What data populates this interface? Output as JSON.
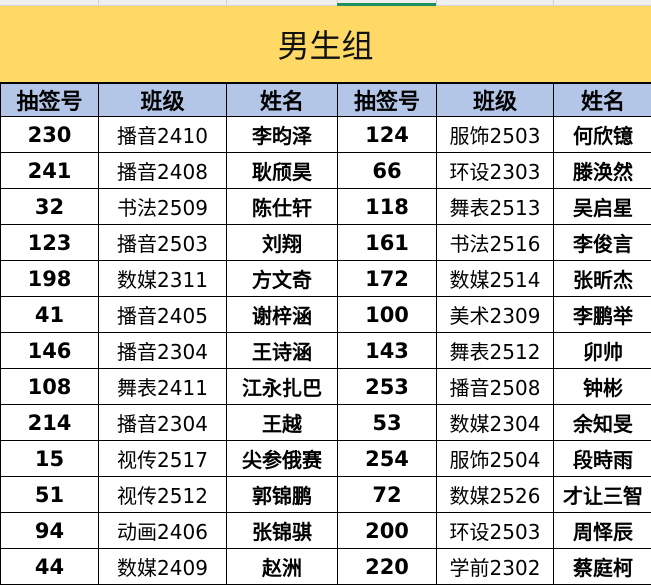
{
  "title": "男生组",
  "colors": {
    "title_bg": "#FFD965",
    "header_bg": "#B4C6E7",
    "selected_column_indicator": "#1e8f5e"
  },
  "headers": [
    "抽签号",
    "班级",
    "姓名",
    "抽签号",
    "班级",
    "姓名"
  ],
  "rows": [
    [
      "230",
      "播音2410",
      "李昀泽",
      "124",
      "服饰2503",
      "何欣镱"
    ],
    [
      "241",
      "播音2408",
      "耿颀昊",
      "66",
      "环设2303",
      "滕涣然"
    ],
    [
      "32",
      "书法2509",
      "陈仕轩",
      "118",
      "舞表2513",
      "吴启星"
    ],
    [
      "123",
      "播音2503",
      "刘翔",
      "161",
      "书法2516",
      "李俊言"
    ],
    [
      "198",
      "数媒2311",
      "方文奇",
      "172",
      "数媒2514",
      "张昕杰"
    ],
    [
      "41",
      "播音2405",
      "谢梓涵",
      "100",
      "美术2309",
      "李鹏举"
    ],
    [
      "146",
      "播音2304",
      "王诗涵",
      "143",
      "舞表2512",
      "卯帅"
    ],
    [
      "108",
      "舞表2411",
      "江永扎巴",
      "253",
      "播音2508",
      "钟彬"
    ],
    [
      "214",
      "播音2304",
      "王越",
      "53",
      "数媒2304",
      "余知旻"
    ],
    [
      "15",
      "视传2517",
      "尖参俄赛",
      "254",
      "服饰2504",
      "段時雨"
    ],
    [
      "51",
      "视传2512",
      "郭锦鹏",
      "72",
      "数媒2526",
      "才让三智"
    ],
    [
      "94",
      "动画2406",
      "张锦骐",
      "200",
      "环设2503",
      "周怿辰"
    ],
    [
      "44",
      "数媒2409",
      "赵洲",
      "220",
      "学前2302",
      "蔡庭柯"
    ]
  ]
}
